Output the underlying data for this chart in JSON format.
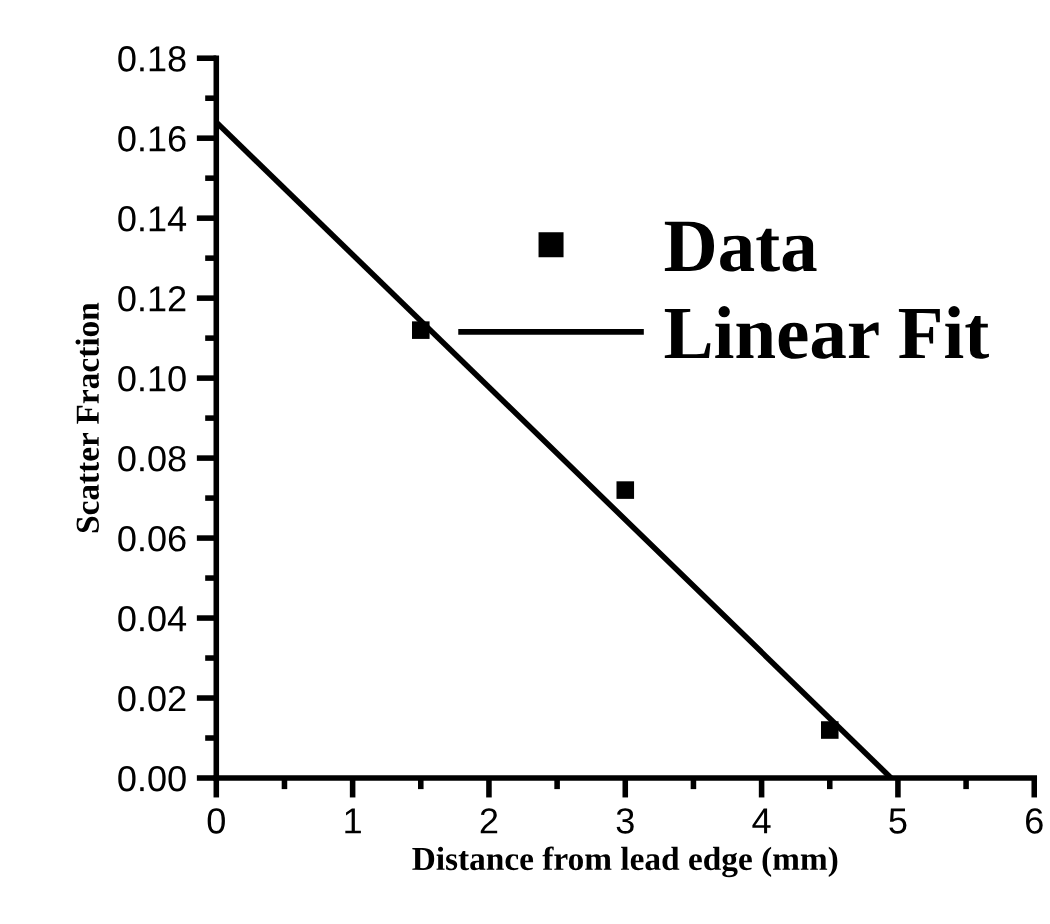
{
  "chart_data": {
    "type": "scatter",
    "xlabel": "Distance from lead edge (mm)",
    "ylabel": "Scatter Fraction",
    "series": [
      {
        "name": "Data",
        "color": "#000000",
        "marker": "square",
        "x": [
          1.5,
          3,
          4.5
        ],
        "values": [
          0.112,
          0.072,
          0.012
        ]
      },
      {
        "name": "Linear Fit",
        "type": "line",
        "color": "#000000",
        "line_style": "solid",
        "x": [
          0,
          4.95
        ],
        "values": [
          0.164,
          0
        ]
      }
    ],
    "xlim": [
      0,
      6
    ],
    "xticks": [
      0,
      1,
      2,
      3,
      4,
      5,
      6
    ],
    "ylim": [
      0,
      0.18
    ],
    "yticks": [
      {
        "value": 0,
        "label": "0.00"
      },
      {
        "value": 0.02,
        "label": "0.02"
      },
      {
        "value": 0.04,
        "label": "0.04"
      },
      {
        "value": 0.06,
        "label": "0.06"
      },
      {
        "value": 0.08,
        "label": "0.08"
      },
      {
        "value": 0.1,
        "label": "0.10"
      },
      {
        "value": 0.12,
        "label": "0.12"
      },
      {
        "value": 0.14,
        "label": "0.14"
      },
      {
        "value": 0.16,
        "label": "0.16"
      },
      {
        "value": 0.18,
        "label": "0.18"
      }
    ],
    "grid": false,
    "legend": "top right"
  }
}
